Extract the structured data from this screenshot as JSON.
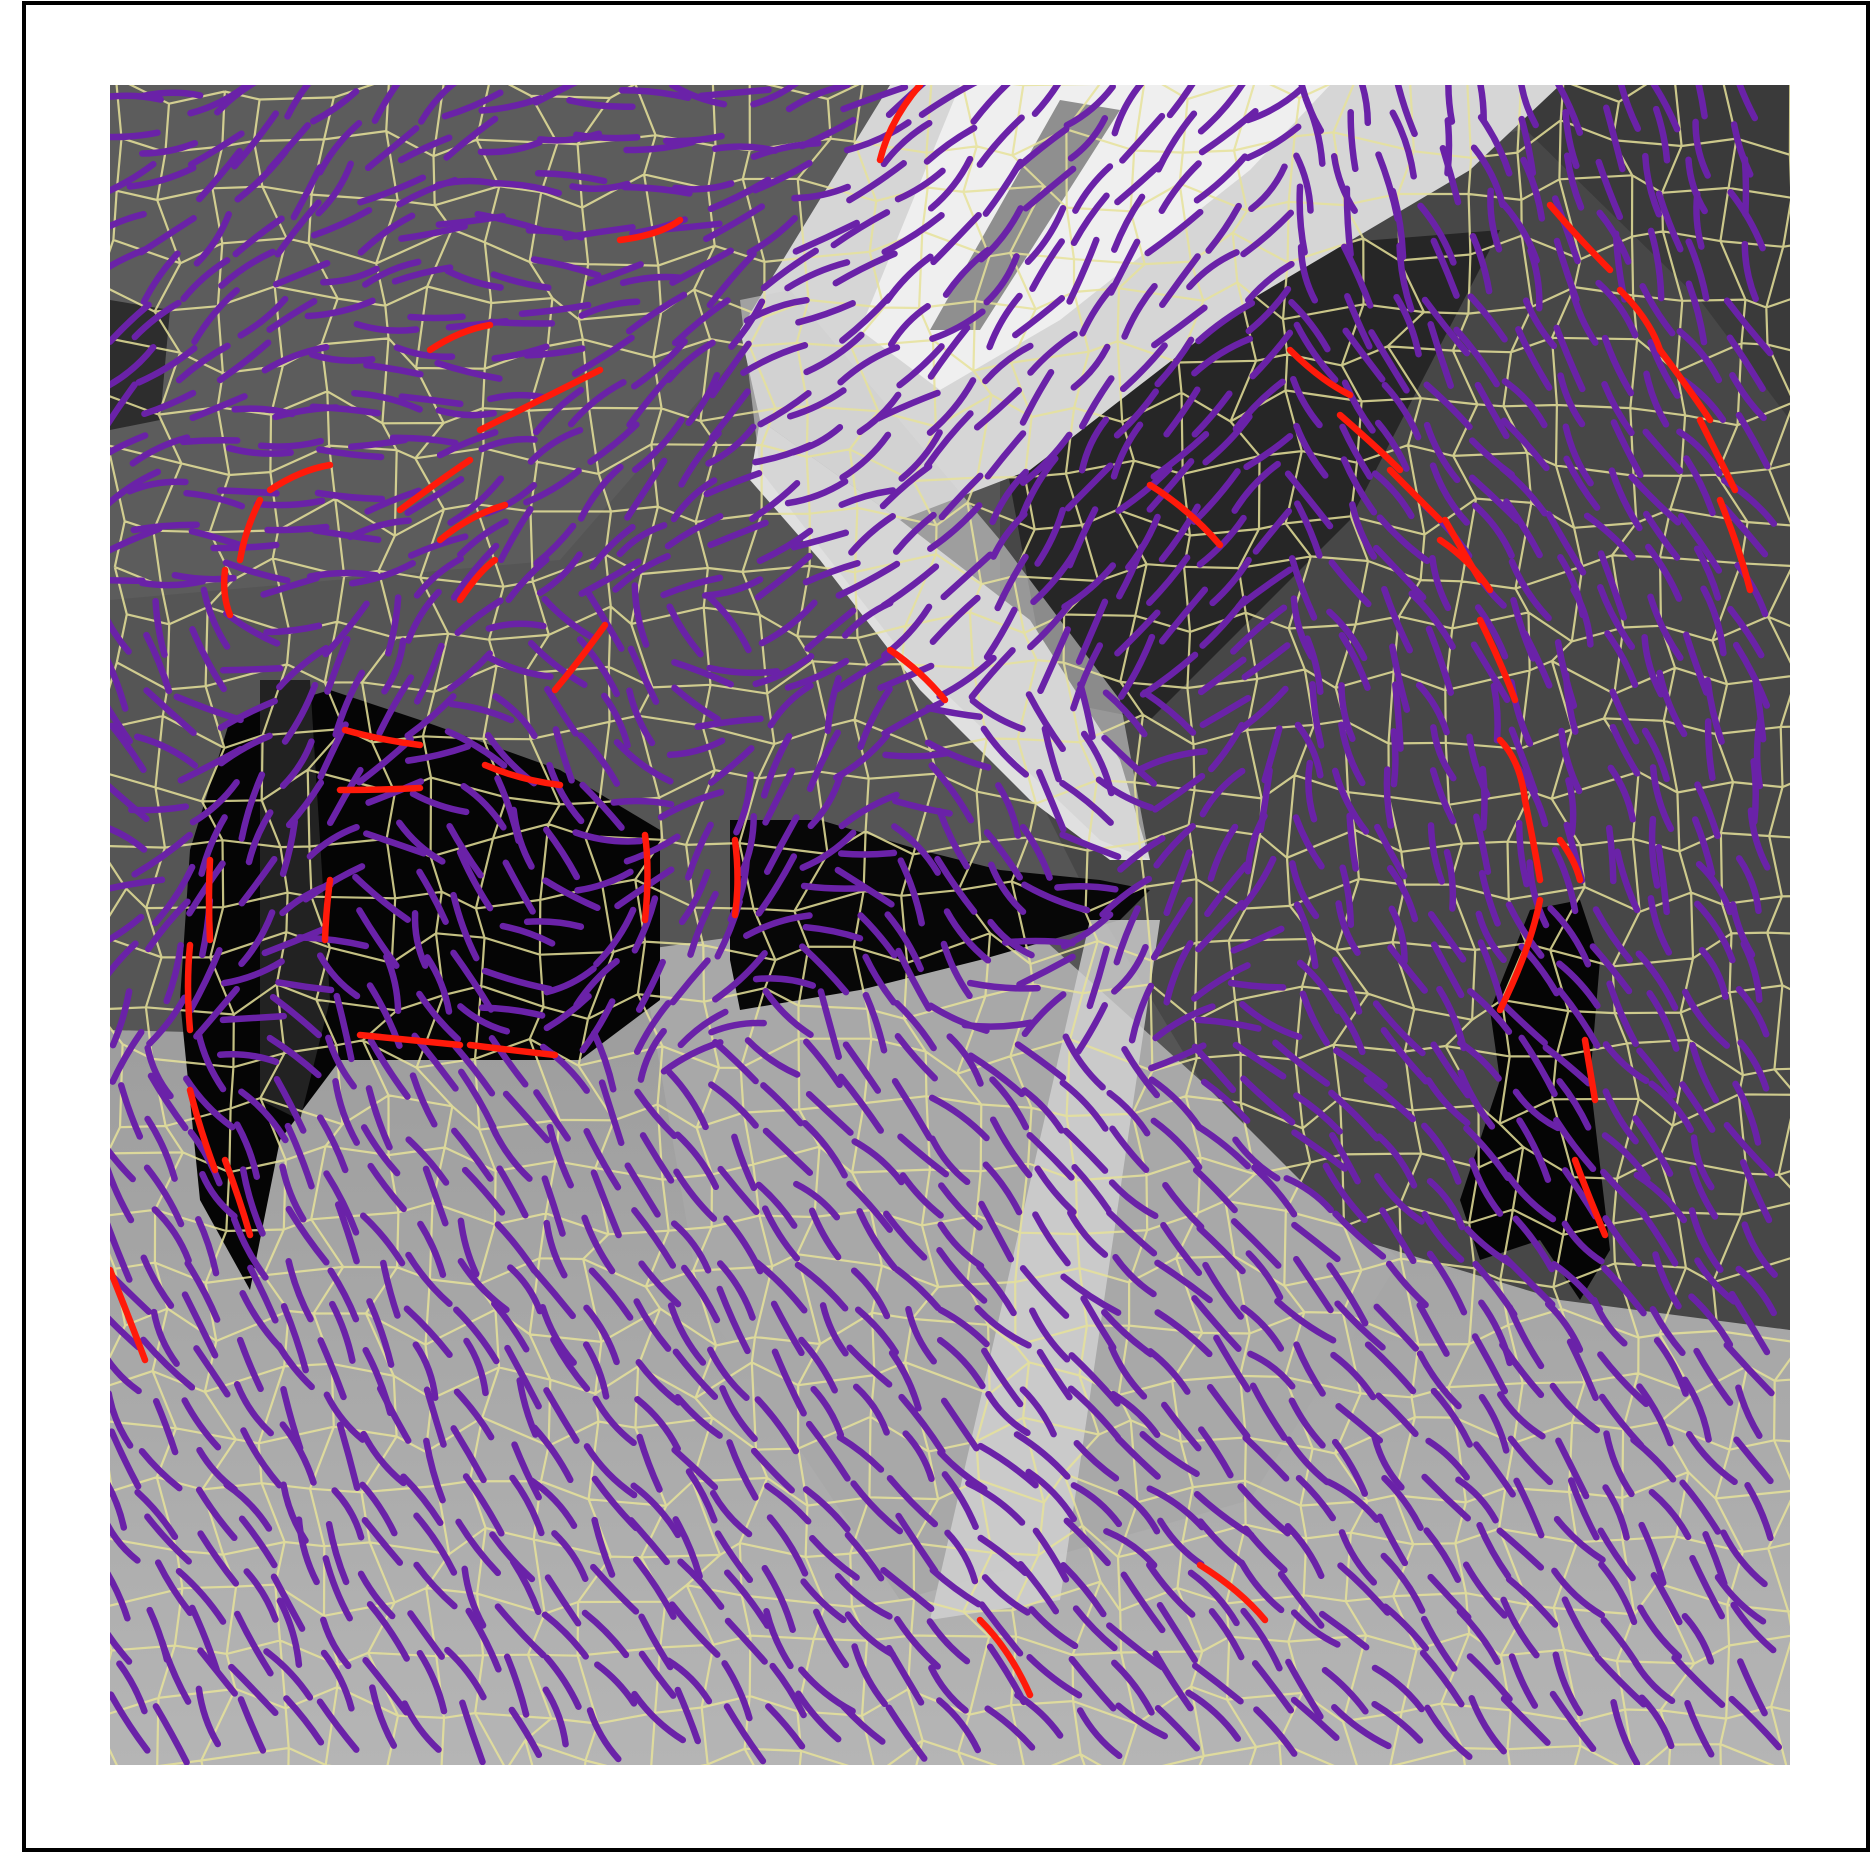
{
  "figure": {
    "background_color": "#ffffff",
    "frame_color": "#000000",
    "cell_border_color": "#e6e29a",
    "stroke_color_primary": "#6a22a8",
    "stroke_color_highlight": "#ff1a0a",
    "tones": {
      "black": "#050505",
      "charcoal": "#2a2a2a",
      "dark_gray": "#444444",
      "mid_dark_gray": "#595959",
      "mid_gray": "#7a7a7a",
      "light_gray": "#a9a9a9",
      "pale_gray": "#c8c8c8",
      "white": "#f2f2f2"
    }
  }
}
